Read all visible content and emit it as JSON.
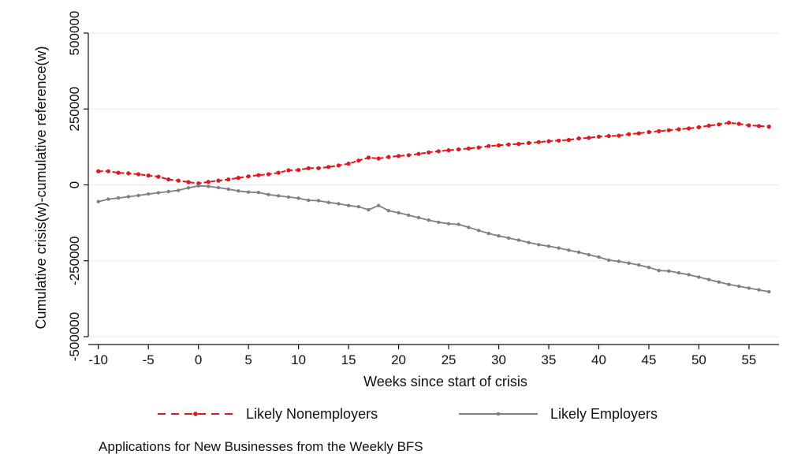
{
  "chart_data": {
    "type": "line",
    "title": "",
    "xlabel": "Weeks since start of crisis",
    "ylabel": "Cumulative crisis(w)-cumulative reference(w)",
    "xlim": [
      -11,
      58
    ],
    "ylim": [
      -500000,
      500000
    ],
    "xticks": [
      -10,
      -5,
      0,
      5,
      10,
      15,
      20,
      25,
      30,
      35,
      40,
      45,
      50,
      55
    ],
    "xtick_labels": [
      "-10",
      "-5",
      "0",
      "5",
      "10",
      "15",
      "20",
      "25",
      "30",
      "35",
      "40",
      "45",
      "50",
      "55"
    ],
    "yticks": [
      -500000,
      -250000,
      0,
      250000,
      500000
    ],
    "ytick_labels": [
      "-500000",
      "-250000",
      "0",
      "250000",
      "500000"
    ],
    "grid": "horizontal",
    "legend_position": "bottom",
    "note": "Applications for New Businesses from the Weekly BFS",
    "x": [
      -10,
      -9,
      -8,
      -7,
      -6,
      -5,
      -4,
      -3,
      -2,
      -1,
      0,
      1,
      2,
      3,
      4,
      5,
      6,
      7,
      8,
      9,
      10,
      11,
      12,
      13,
      14,
      15,
      16,
      17,
      18,
      19,
      20,
      21,
      22,
      23,
      24,
      25,
      26,
      27,
      28,
      29,
      30,
      31,
      32,
      33,
      34,
      35,
      36,
      37,
      38,
      39,
      40,
      41,
      42,
      43,
      44,
      45,
      46,
      47,
      48,
      49,
      50,
      51,
      52,
      53,
      54,
      55,
      56,
      57
    ],
    "series": [
      {
        "name": "Likely Nonemployers",
        "color": "#e8141b",
        "style": "dashed",
        "values": [
          45000,
          45000,
          40000,
          38000,
          35000,
          31000,
          27000,
          18000,
          14000,
          9000,
          5000,
          10000,
          14000,
          18000,
          23000,
          28000,
          32000,
          35000,
          40000,
          48000,
          49000,
          55000,
          55000,
          59000,
          64000,
          70000,
          80000,
          90000,
          87000,
          92000,
          95000,
          98000,
          102000,
          107000,
          111000,
          114000,
          117000,
          120000,
          123000,
          128000,
          130000,
          133000,
          135000,
          138000,
          141000,
          144000,
          146000,
          148000,
          153000,
          155000,
          159000,
          161000,
          162000,
          167000,
          170000,
          174000,
          177000,
          180000,
          183000,
          186000,
          190000,
          195000,
          199000,
          205000,
          201000,
          196000,
          194000,
          192000
        ]
      },
      {
        "name": "Likely Employers",
        "color": "#7f7f7f",
        "style": "solid",
        "values": [
          -55000,
          -47000,
          -43000,
          -39000,
          -35000,
          -30000,
          -26000,
          -22000,
          -18000,
          -10000,
          -3000,
          -5000,
          -9000,
          -14000,
          -20000,
          -24000,
          -25000,
          -32000,
          -36000,
          -40000,
          -44000,
          -51000,
          -52000,
          -58000,
          -62000,
          -68000,
          -72000,
          -82000,
          -68000,
          -85000,
          -92000,
          -100000,
          -108000,
          -116000,
          -123000,
          -128000,
          -130000,
          -140000,
          -150000,
          -160000,
          -168000,
          -175000,
          -182000,
          -190000,
          -197000,
          -202000,
          -208000,
          -215000,
          -222000,
          -230000,
          -238000,
          -248000,
          -252000,
          -258000,
          -264000,
          -272000,
          -282000,
          -284000,
          -290000,
          -296000,
          -304000,
          -312000,
          -320000,
          -328000,
          -334000,
          -340000,
          -346000,
          -352000
        ]
      }
    ]
  }
}
